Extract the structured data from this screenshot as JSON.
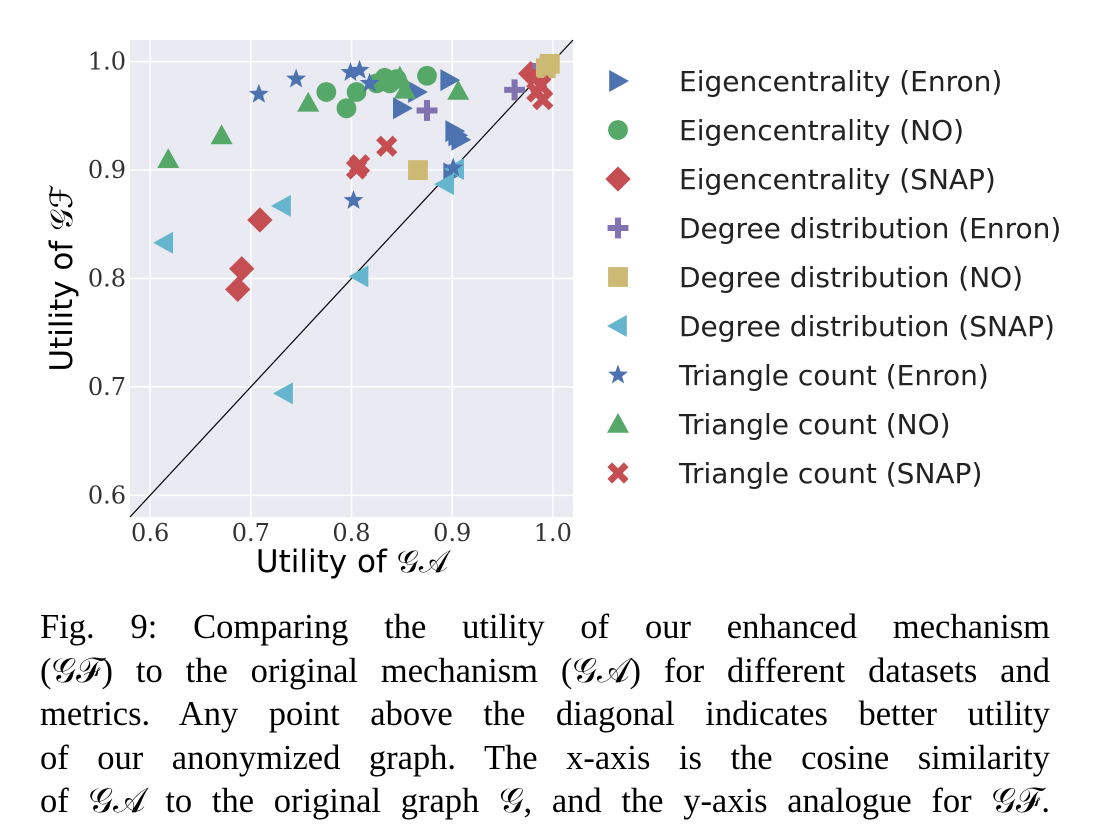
{
  "chart_data": {
    "type": "scatter",
    "xlabel": "Utility of 𝒢𝒜",
    "ylabel": "Utility of 𝒢ℱ",
    "xlim": [
      0.58,
      1.02
    ],
    "ylim": [
      0.58,
      1.02
    ],
    "xticks": [
      0.6,
      0.7,
      0.8,
      0.9,
      1.0
    ],
    "yticks": [
      0.6,
      0.7,
      0.8,
      0.9,
      1.0
    ],
    "xtick_labels": [
      "0.6",
      "0.7",
      "0.8",
      "0.9",
      "1.0"
    ],
    "ytick_labels": [
      "0.6",
      "0.7",
      "0.8",
      "0.9",
      "1.0"
    ],
    "grid": true,
    "diagonal": true,
    "legend_position": "right",
    "series": [
      {
        "name": "Eigencentrality (Enron)",
        "marker": "triangle-right",
        "color": "#4C72B0",
        "x": [
          0.85,
          0.865,
          0.897,
          0.9,
          0.902,
          0.905,
          0.908
        ],
        "y": [
          0.957,
          0.972,
          0.983,
          0.897,
          0.936,
          0.932,
          0.928
        ]
      },
      {
        "name": "Eigencentrality (NO)",
        "marker": "circle",
        "color": "#55A868",
        "x": [
          0.775,
          0.795,
          0.805,
          0.825,
          0.833,
          0.838,
          0.875,
          0.845
        ],
        "y": [
          0.972,
          0.957,
          0.972,
          0.98,
          0.985,
          0.98,
          0.987,
          0.984
        ]
      },
      {
        "name": "Eigencentrality (SNAP)",
        "marker": "diamond",
        "color": "#C44E52",
        "x": [
          0.687,
          0.691,
          0.709,
          0.978,
          0.987
        ],
        "y": [
          0.79,
          0.809,
          0.854,
          0.989,
          0.986
        ]
      },
      {
        "name": "Degree distribution (Enron)",
        "marker": "plus",
        "color": "#8172B2",
        "x": [
          0.875,
          0.962,
          0.99
        ],
        "y": [
          0.955,
          0.974,
          0.996
        ]
      },
      {
        "name": "Degree distribution (NO)",
        "marker": "square",
        "color": "#CCB974",
        "x": [
          0.866,
          0.993,
          0.997
        ],
        "y": [
          0.9,
          0.994,
          0.998
        ]
      },
      {
        "name": "Degree distribution (SNAP)",
        "marker": "triangle-left",
        "color": "#64B5CD",
        "x": [
          0.614,
          0.731,
          0.733,
          0.808,
          0.893,
          0.903
        ],
        "y": [
          0.833,
          0.867,
          0.694,
          0.802,
          0.887,
          0.901
        ]
      },
      {
        "name": "Triangle count (Enron)",
        "marker": "star",
        "color": "#4C72B0",
        "x": [
          0.708,
          0.745,
          0.799,
          0.802,
          0.808,
          0.818,
          0.901
        ],
        "y": [
          0.97,
          0.984,
          0.99,
          0.872,
          0.992,
          0.98,
          0.902
        ]
      },
      {
        "name": "Triangle count (NO)",
        "marker": "triangle-up",
        "color": "#55A868",
        "x": [
          0.618,
          0.671,
          0.757,
          0.848,
          0.853,
          0.906
        ],
        "y": [
          0.91,
          0.932,
          0.962,
          0.986,
          0.974,
          0.973
        ]
      },
      {
        "name": "Triangle count (SNAP)",
        "marker": "x",
        "color": "#C44E52",
        "x": [
          0.805,
          0.808,
          0.835,
          0.984,
          0.988,
          0.99
        ],
        "y": [
          0.901,
          0.905,
          0.922,
          0.972,
          0.978,
          0.965
        ]
      }
    ]
  },
  "caption": {
    "lines": [
      "Fig. 9: Comparing the utility of our enhanced mechanism",
      "(𝒢ℱ) to the original mechanism (𝒢𝒜) for different datasets and",
      "metrics. Any point above the diagonal indicates better utility",
      "of our anonymized graph. The x-axis is the cosine similarity",
      "of 𝒢𝒜 to the original graph 𝒢, and the y-axis analogue for 𝒢ℱ."
    ]
  }
}
